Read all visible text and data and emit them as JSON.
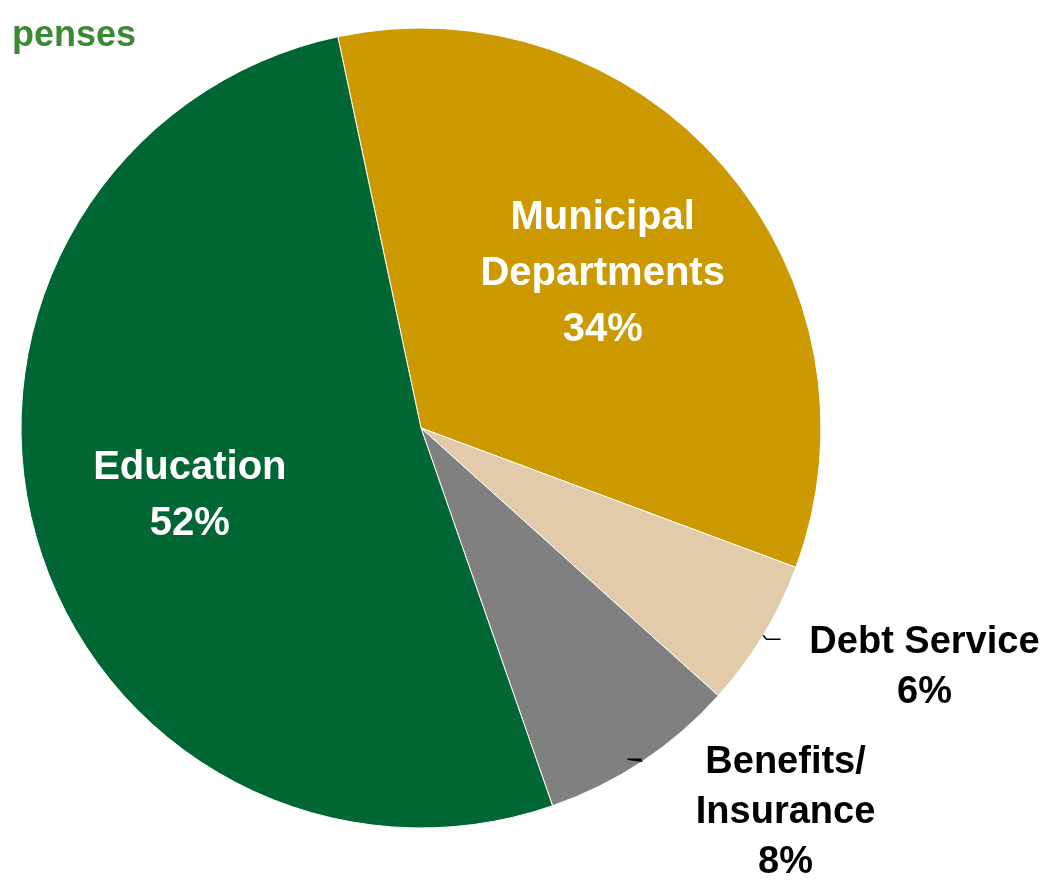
{
  "chart_data": {
    "type": "pie",
    "title": "penses",
    "categories": [
      "Municipal Departments",
      "Debt Service",
      "Benefits/ Insurance",
      "Education"
    ],
    "values": [
      34,
      6,
      8,
      52
    ],
    "colors": [
      "#cc9900",
      "#e2cbab",
      "#808080",
      "#006633"
    ],
    "value_labels": [
      "34%",
      "6%",
      "8%",
      "52%"
    ]
  }
}
